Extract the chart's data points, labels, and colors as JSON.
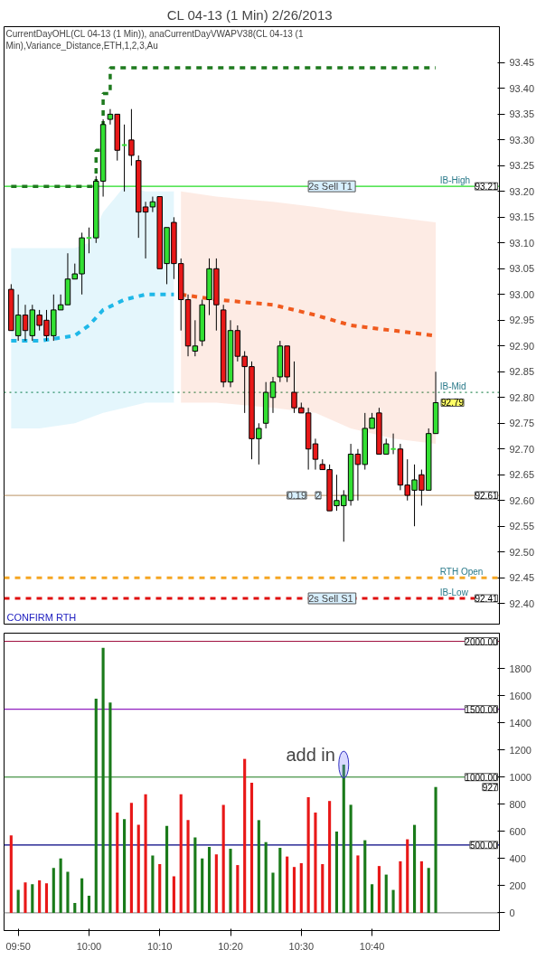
{
  "chart_data": [
    {
      "type": "candlestick",
      "title": "CL 04-13 (1 Min)  2/26/2013",
      "tick_labels": "y",
      "grid": false,
      "x": [
        "2013-02-26T09:49",
        "2013-02-26T09:50",
        "2013-02-26T09:51",
        "2013-02-26T09:52",
        "2013-02-26T09:53",
        "2013-02-26T09:54",
        "2013-02-26T09:55",
        "2013-02-26T09:56",
        "2013-02-26T09:57",
        "2013-02-26T09:58",
        "2013-02-26T09:59",
        "2013-02-26T10:00",
        "2013-02-26T10:01",
        "2013-02-26T10:02",
        "2013-02-26T10:03",
        "2013-02-26T10:04",
        "2013-02-26T10:05",
        "2013-02-26T10:06",
        "2013-02-26T10:07",
        "2013-02-26T10:08",
        "2013-02-26T10:09",
        "2013-02-26T10:10",
        "2013-02-26T10:11",
        "2013-02-26T10:12",
        "2013-02-26T10:13",
        "2013-02-26T10:14",
        "2013-02-26T10:15",
        "2013-02-26T10:16",
        "2013-02-26T10:17",
        "2013-02-26T10:18",
        "2013-02-26T10:19",
        "2013-02-26T10:20",
        "2013-02-26T10:21",
        "2013-02-26T10:22",
        "2013-02-26T10:23",
        "2013-02-26T10:24",
        "2013-02-26T10:25",
        "2013-02-26T10:26",
        "2013-02-26T10:27",
        "2013-02-26T10:28",
        "2013-02-26T10:29",
        "2013-02-26T10:30",
        "2013-02-26T10:31",
        "2013-02-26T10:32",
        "2013-02-26T10:33",
        "2013-02-26T10:34",
        "2013-02-26T10:35",
        "2013-02-26T10:36",
        "2013-02-26T10:37",
        "2013-02-26T10:38",
        "2013-02-26T10:39",
        "2013-02-26T10:40",
        "2013-02-26T10:41",
        "2013-02-26T10:42",
        "2013-02-26T10:43",
        "2013-02-26T10:44",
        "2013-02-26T10:45",
        "2013-02-26T10:46",
        "2013-02-26T10:47",
        "2013-02-26T10:48",
        "2013-02-26T10:49"
      ],
      "ohlc": [
        [
          93.01,
          93.02,
          92.93,
          92.93
        ],
        [
          92.92,
          93.0,
          92.91,
          92.96
        ],
        [
          92.96,
          92.98,
          92.91,
          92.93
        ],
        [
          92.92,
          92.98,
          92.91,
          92.97
        ],
        [
          92.96,
          92.97,
          92.93,
          92.94
        ],
        [
          92.95,
          92.97,
          92.91,
          92.92
        ],
        [
          92.92,
          93.0,
          92.91,
          92.97
        ],
        [
          92.97,
          93.0,
          92.97,
          92.98
        ],
        [
          92.98,
          93.08,
          92.98,
          93.03
        ],
        [
          93.03,
          93.06,
          93.03,
          93.04
        ],
        [
          93.04,
          93.12,
          93.0,
          93.11
        ],
        [
          93.11,
          93.13,
          93.08,
          93.11
        ],
        [
          93.11,
          93.23,
          93.1,
          93.22
        ],
        [
          93.22,
          93.34,
          93.19,
          93.33
        ],
        [
          93.34,
          93.36,
          93.33,
          93.35
        ],
        [
          93.35,
          93.35,
          93.26,
          93.28
        ],
        [
          93.29,
          93.33,
          93.2,
          93.29
        ],
        [
          93.3,
          93.36,
          93.25,
          93.27
        ],
        [
          93.26,
          93.27,
          93.11,
          93.16
        ],
        [
          93.17,
          93.18,
          93.07,
          93.16
        ],
        [
          93.17,
          93.19,
          93.16,
          93.18
        ],
        [
          93.19,
          93.19,
          93.05,
          93.05
        ],
        [
          93.06,
          93.13,
          93.02,
          93.13
        ],
        [
          93.14,
          93.15,
          93.03,
          93.06
        ],
        [
          93.06,
          93.07,
          92.93,
          92.99
        ],
        [
          92.99,
          93.0,
          92.88,
          92.9
        ],
        [
          92.89,
          92.95,
          92.88,
          92.9
        ],
        [
          92.91,
          92.99,
          92.9,
          92.98
        ],
        [
          92.99,
          93.07,
          92.96,
          93.05
        ],
        [
          93.05,
          93.07,
          92.93,
          92.98
        ],
        [
          92.97,
          92.98,
          92.82,
          92.83
        ],
        [
          92.83,
          92.95,
          92.82,
          92.93
        ],
        [
          92.93,
          92.94,
          92.87,
          92.88
        ],
        [
          92.88,
          92.89,
          92.77,
          92.86
        ],
        [
          92.86,
          92.87,
          92.68,
          92.72
        ],
        [
          92.72,
          92.75,
          92.67,
          92.74
        ],
        [
          92.75,
          92.83,
          92.74,
          92.81
        ],
        [
          92.8,
          92.84,
          92.77,
          92.83
        ],
        [
          92.84,
          92.91,
          92.83,
          92.9
        ],
        [
          92.9,
          92.9,
          92.83,
          92.84
        ],
        [
          92.81,
          92.87,
          92.77,
          92.78
        ],
        [
          92.78,
          92.79,
          92.77,
          92.77
        ],
        [
          92.77,
          92.78,
          92.66,
          92.7
        ],
        [
          92.71,
          92.72,
          92.66,
          92.68
        ],
        [
          92.67,
          92.68,
          92.66,
          92.66
        ],
        [
          92.66,
          92.67,
          92.58,
          92.58
        ],
        [
          92.59,
          92.65,
          92.58,
          92.6
        ],
        [
          92.59,
          92.62,
          92.52,
          92.61
        ],
        [
          92.6,
          92.71,
          92.59,
          92.69
        ],
        [
          92.69,
          92.7,
          92.6,
          92.67
        ],
        [
          92.67,
          92.77,
          92.66,
          92.74
        ],
        [
          92.74,
          92.77,
          92.74,
          92.76
        ],
        [
          92.77,
          92.78,
          92.69,
          92.69
        ],
        [
          92.69,
          92.72,
          92.69,
          92.71
        ],
        [
          92.7,
          92.73,
          92.69,
          92.7
        ],
        [
          92.7,
          92.71,
          92.62,
          92.63
        ],
        [
          92.63,
          92.68,
          92.6,
          92.61
        ],
        [
          92.62,
          92.67,
          92.55,
          92.64
        ],
        [
          92.65,
          92.66,
          92.59,
          92.62
        ],
        [
          92.62,
          92.74,
          92.62,
          92.73
        ],
        [
          92.73,
          92.85,
          92.73,
          92.79
        ]
      ],
      "colors": [
        "#e81818",
        "#33e033",
        "#e81818",
        "#33e033",
        "#e81818",
        "#e81818",
        "#33e033",
        "#33e033",
        "#33e033",
        "#33e033",
        "#33e033",
        "#33e033",
        "#33e033",
        "#33e033",
        "#33e033",
        "#e81818",
        "#33e033",
        "#e81818",
        "#e81818",
        "#e81818",
        "#33e033",
        "#e81818",
        "#33e033",
        "#e81818",
        "#e81818",
        "#e81818",
        "#33e033",
        "#33e033",
        "#33e033",
        "#e81818",
        "#e81818",
        "#33e033",
        "#e81818",
        "#e81818",
        "#e81818",
        "#33e033",
        "#33e033",
        "#33e033",
        "#33e033",
        "#e81818",
        "#e81818",
        "#e81818",
        "#e81818",
        "#e81818",
        "#e81818",
        "#e81818",
        "#33e033",
        "#33e033",
        "#33e033",
        "#e81818",
        "#33e033",
        "#33e033",
        "#e81818",
        "#33e033",
        "#33e033",
        "#e81818",
        "#e81818",
        "#33e033",
        "#e81818",
        "#33e033",
        "#33e033"
      ],
      "series": [
        {
          "type": "line",
          "color": "#1fb8e8",
          "line_style": "dashed",
          "x": [
            "2013-02-26T09:49",
            "2013-02-26T09:53",
            "2013-02-26T09:58",
            "2013-02-26T10:00",
            "2013-02-26T10:02",
            "2013-02-26T10:05",
            "2013-02-26T10:08",
            "2013-02-26T10:12"
          ],
          "values": [
            92.91,
            92.91,
            92.92,
            92.94,
            92.97,
            92.99,
            93.0,
            93.0
          ],
          "upper": [
            93.09,
            93.09,
            93.09,
            93.1,
            93.16,
            93.21,
            93.2,
            93.2
          ],
          "lower": [
            92.74,
            92.74,
            92.75,
            92.76,
            92.77,
            92.78,
            92.79,
            92.79
          ]
        },
        {
          "type": "line",
          "color": "#f05a1e",
          "line_style": "dashed",
          "x": [
            "2013-02-26T10:13",
            "2013-02-26T10:18",
            "2013-02-26T10:26",
            "2013-02-26T10:32",
            "2013-02-26T10:37",
            "2013-02-26T10:43",
            "2013-02-26T10:49"
          ],
          "values": [
            93.0,
            92.99,
            92.98,
            92.96,
            92.94,
            92.93,
            92.92
          ],
          "upper": [
            93.2,
            93.19,
            93.18,
            93.17,
            93.16,
            93.15,
            93.14
          ],
          "lower": [
            92.79,
            92.79,
            92.78,
            92.77,
            92.74,
            92.72,
            92.71
          ]
        },
        {
          "type": "step",
          "color": "#1e7a1e",
          "line_style": "dashed",
          "x": [
            "2013-02-26T09:49",
            "2013-02-26T10:01",
            "2013-02-26T10:02",
            "2013-02-26T10:03",
            "2013-02-26T10:49"
          ],
          "values": [
            93.21,
            93.28,
            93.39,
            93.44,
            93.44
          ]
        }
      ],
      "xlim": [
        "2013-02-26T09:48",
        "2013-02-26T10:58"
      ],
      "ylim": [
        92.36,
        93.52
      ],
      "yticks": [
        {
          "value": 92.4,
          "label": "92.40"
        },
        92.45,
        {
          "value": 92.5,
          "label": "92.50"
        },
        92.55,
        {
          "value": 92.6,
          "label": "92.60"
        },
        92.65,
        {
          "value": 92.7,
          "label": "92.70"
        },
        92.75,
        {
          "value": 92.8,
          "label": "92.80"
        },
        92.85,
        {
          "value": 92.9,
          "label": "92.90"
        },
        92.95,
        {
          "value": 93.0,
          "label": "93.00"
        },
        93.05,
        {
          "value": 93.1,
          "label": "93.10"
        },
        93.15,
        {
          "value": 93.2,
          "label": "93.20"
        },
        93.25,
        {
          "value": 93.3,
          "label": "93.30"
        },
        93.35,
        {
          "value": 93.4,
          "label": "93.40"
        },
        93.45
      ],
      "ref_lines": [
        {
          "axis": "y",
          "value": 93.21,
          "label": "IB-High",
          "color": "#22dd22",
          "line_style": "solid"
        },
        {
          "axis": "y",
          "value": 92.81,
          "label": "IB-Mid",
          "color": "#2e8b57",
          "line_style": "dotted"
        },
        {
          "axis": "y",
          "value": 92.61,
          "label": null,
          "color": "#c8a882",
          "line_style": "solid"
        },
        {
          "axis": "y",
          "value": 92.45,
          "label": "RTH Open",
          "color": "#f5a623",
          "line_style": "dashed"
        },
        {
          "axis": "y",
          "value": 92.41,
          "label": "IB-Low",
          "color": "#e01010",
          "line_style": "dashed"
        }
      ],
      "annotations": [
        "CurrentDayOHL(CL 04-13 (1 Min)), anaCurrentDayVWAPV38(CL 04-13 (1 Min),Variance_Distance,ETH,1,2,3,Au",
        {
          "text": "2s  Sell T1",
          "x": "2013-02-26T10:31",
          "y": 93.21
        },
        {
          "text": "2s  Sell S1",
          "x": "2013-02-26T10:31",
          "y": 92.41
        },
        {
          "text": "0.19",
          "x": "2013-02-26T10:28",
          "y": 92.61
        },
        {
          "text": "2",
          "x": "2013-02-26T10:32",
          "y": 92.61
        },
        "CONFIRM RTH",
        {
          "text": "93.21",
          "y": 93.21
        },
        {
          "text": "92.79",
          "x": "2013-02-26T10:49",
          "y": 92.79
        },
        {
          "text": "92.61",
          "y": 92.61
        },
        {
          "text": "92.41",
          "y": 92.41
        }
      ]
    },
    {
      "type": "bar",
      "grid": false,
      "x": [
        "2013-02-26T09:49",
        "2013-02-26T09:50",
        "2013-02-26T09:51",
        "2013-02-26T09:52",
        "2013-02-26T09:53",
        "2013-02-26T09:54",
        "2013-02-26T09:55",
        "2013-02-26T09:56",
        "2013-02-26T09:57",
        "2013-02-26T09:58",
        "2013-02-26T09:59",
        "2013-02-26T10:00",
        "2013-02-26T10:01",
        "2013-02-26T10:02",
        "2013-02-26T10:03",
        "2013-02-26T10:04",
        "2013-02-26T10:05",
        "2013-02-26T10:06",
        "2013-02-26T10:07",
        "2013-02-26T10:08",
        "2013-02-26T10:09",
        "2013-02-26T10:10",
        "2013-02-26T10:11",
        "2013-02-26T10:12",
        "2013-02-26T10:13",
        "2013-02-26T10:14",
        "2013-02-26T10:15",
        "2013-02-26T10:16",
        "2013-02-26T10:17",
        "2013-02-26T10:18",
        "2013-02-26T10:19",
        "2013-02-26T10:20",
        "2013-02-26T10:21",
        "2013-02-26T10:22",
        "2013-02-26T10:23",
        "2013-02-26T10:24",
        "2013-02-26T10:25",
        "2013-02-26T10:26",
        "2013-02-26T10:27",
        "2013-02-26T10:28",
        "2013-02-26T10:29",
        "2013-02-26T10:30",
        "2013-02-26T10:31",
        "2013-02-26T10:32",
        "2013-02-26T10:33",
        "2013-02-26T10:34",
        "2013-02-26T10:35",
        "2013-02-26T10:36",
        "2013-02-26T10:37",
        "2013-02-26T10:38",
        "2013-02-26T10:39",
        "2013-02-26T10:40",
        "2013-02-26T10:41",
        "2013-02-26T10:42",
        "2013-02-26T10:43",
        "2013-02-26T10:44",
        "2013-02-26T10:45",
        "2013-02-26T10:46",
        "2013-02-26T10:47",
        "2013-02-26T10:48",
        "2013-02-26T10:49"
      ],
      "values": [
        570,
        169,
        225,
        211,
        239,
        218,
        331,
        401,
        303,
        73,
        254,
        127,
        1577,
        1951,
        1549,
        739,
        690,
        810,
        648,
        873,
        423,
        359,
        641,
        270,
        873,
        683,
        556,
        401,
        486,
        430,
        796,
        472,
        352,
        1134,
        958,
        683,
        521,
        296,
        479,
        415,
        338,
        366,
        852,
        739,
        359,
        824,
        599,
        1092,
        796,
        423,
        535,
        211,
        345,
        282,
        169,
        380,
        542,
        648,
        380,
        331,
        927
      ],
      "colors": [
        "#e81818",
        "#1a7a1a",
        "#e81818",
        "#1a7a1a",
        "#e81818",
        "#e81818",
        "#1a7a1a",
        "#1a7a1a",
        "#1a7a1a",
        "#1a7a1a",
        "#1a7a1a",
        "#1a7a1a",
        "#1a7a1a",
        "#1a7a1a",
        "#1a7a1a",
        "#e81818",
        "#1a7a1a",
        "#e81818",
        "#e81818",
        "#e81818",
        "#1a7a1a",
        "#e81818",
        "#1a7a1a",
        "#e81818",
        "#e81818",
        "#e81818",
        "#1a7a1a",
        "#1a7a1a",
        "#1a7a1a",
        "#e81818",
        "#e81818",
        "#1a7a1a",
        "#e81818",
        "#e81818",
        "#e81818",
        "#1a7a1a",
        "#1a7a1a",
        "#1a7a1a",
        "#1a7a1a",
        "#e81818",
        "#e81818",
        "#e81818",
        "#e81818",
        "#e81818",
        "#e81818",
        "#e81818",
        "#1a7a1a",
        "#1a7a1a",
        "#1a7a1a",
        "#e81818",
        "#1a7a1a",
        "#1a7a1a",
        "#e81818",
        "#1a7a1a",
        "#1a7a1a",
        "#e81818",
        "#e81818",
        "#1a7a1a",
        "#e81818",
        "#1a7a1a",
        "#1a7a1a"
      ],
      "xlim": [
        "2013-02-26T09:48",
        "2013-02-26T10:58"
      ],
      "ylim": [
        -130,
        2060
      ],
      "xticks": [
        {
          "value": "2013-02-26T09:50",
          "label": "09:50"
        },
        {
          "value": "2013-02-26T10:00",
          "label": "10:00"
        },
        {
          "value": "2013-02-26T10:10",
          "label": "10:10"
        },
        {
          "value": "2013-02-26T10:20",
          "label": "10:20"
        },
        {
          "value": "2013-02-26T10:30",
          "label": "10:30"
        },
        {
          "value": "2013-02-26T10:40",
          "label": "10:40"
        }
      ],
      "yticks": [
        0,
        200,
        400,
        600,
        800,
        1000,
        1200,
        1400,
        1600,
        1800
      ],
      "ref_lines": [
        {
          "axis": "y",
          "value": 2000,
          "label": null,
          "color": "#a01040",
          "line_style": "solid"
        },
        {
          "axis": "y",
          "value": 1500,
          "label": null,
          "color": "#9020c0",
          "line_style": "solid"
        },
        {
          "axis": "y",
          "value": 1000,
          "label": null,
          "color": "#1a7a1a",
          "line_style": "solid"
        },
        {
          "axis": "y",
          "value": 500,
          "label": null,
          "color": "#000080",
          "line_style": "solid"
        },
        {
          "axis": "y",
          "value": 0,
          "label": null,
          "color": "#999999",
          "line_style": "solid"
        }
      ],
      "annotations": [
        {
          "text": "add in",
          "x": "2013-02-26T10:36",
          "y": 1092
        },
        {
          "text": "2000.00",
          "y": 2000
        },
        {
          "text": "1500.00",
          "y": 1500
        },
        {
          "text": "1000.00",
          "y": 1000
        },
        {
          "text": "500.00",
          "y": 500
        },
        {
          "text": "927",
          "y": 927
        }
      ]
    }
  ]
}
